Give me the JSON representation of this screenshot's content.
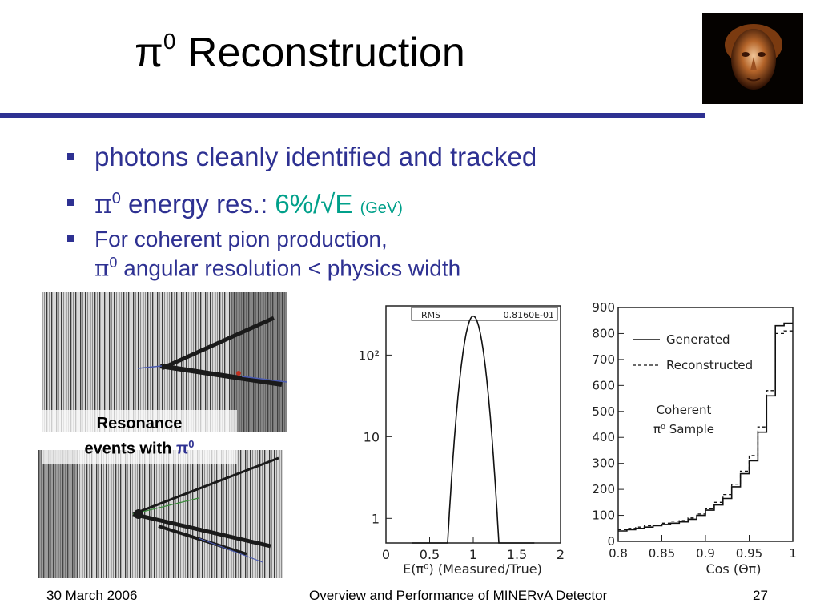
{
  "slide": {
    "title_symbol": "π",
    "title_sup": "0",
    "title_text": " Reconstruction"
  },
  "bullets": {
    "b1": "photons cleanly identified and tracked",
    "b2_sym": "π",
    "b2_sup": "0",
    "b2_text": " energy res.: ",
    "b2_value": "6%/√E",
    "b2_unit": "(GeV)",
    "b3_line1": "For coherent pion production,",
    "b3_sym": "π",
    "b3_sup": "0",
    "b3_line2": " angular resolution < physics width"
  },
  "event_display": {
    "label_line1": "Resonance",
    "label_line2": "events with ",
    "label_sym": "π",
    "label_sup": "0"
  },
  "footer": {
    "date": "30 March 2006",
    "title": "Overview and Performance of MINERvA Detector",
    "page": "27"
  },
  "chart_data": [
    {
      "type": "histogram",
      "stat_label": "RMS",
      "stat_value": "0.8160E-01",
      "xlabel": "E(π⁰) (Measured/True)",
      "x_ticks": [
        "0",
        "0.5",
        "1",
        "1.5",
        "2"
      ],
      "xlim": [
        0,
        2
      ],
      "y_scale": "log",
      "y_ticks": [
        "10²",
        "10",
        "1"
      ],
      "ylim": [
        0.5,
        400
      ],
      "peak_x": 1.0,
      "peak_y": 300
    },
    {
      "type": "histogram",
      "xlabel": "Cos (Θπ)",
      "x_ticks": [
        "0.8",
        "0.85",
        "0.9",
        "0.95",
        "1"
      ],
      "xlim": [
        0.8,
        1.0
      ],
      "y_ticks": [
        "0",
        "100",
        "200",
        "300",
        "400",
        "500",
        "600",
        "700",
        "800",
        "900"
      ],
      "ylim": [
        0,
        900
      ],
      "annotation_line1": "Coherent",
      "annotation_line2": "π⁰ Sample",
      "series": [
        {
          "name": "Generated",
          "style": "solid",
          "x": [
            0.8,
            0.81,
            0.82,
            0.83,
            0.84,
            0.85,
            0.86,
            0.87,
            0.88,
            0.89,
            0.9,
            0.91,
            0.92,
            0.93,
            0.94,
            0.95,
            0.96,
            0.97,
            0.98,
            0.99
          ],
          "values": [
            40,
            45,
            50,
            55,
            60,
            65,
            70,
            75,
            85,
            100,
            120,
            140,
            165,
            210,
            260,
            310,
            420,
            560,
            830,
            840
          ]
        },
        {
          "name": "Reconstructed",
          "style": "dashed",
          "x": [
            0.8,
            0.81,
            0.82,
            0.83,
            0.84,
            0.85,
            0.86,
            0.87,
            0.88,
            0.89,
            0.9,
            0.91,
            0.92,
            0.93,
            0.94,
            0.95,
            0.96,
            0.97,
            0.98,
            0.99
          ],
          "values": [
            45,
            50,
            55,
            60,
            62,
            70,
            78,
            80,
            90,
            105,
            125,
            150,
            180,
            220,
            270,
            330,
            440,
            580,
            800,
            810
          ]
        }
      ]
    }
  ]
}
